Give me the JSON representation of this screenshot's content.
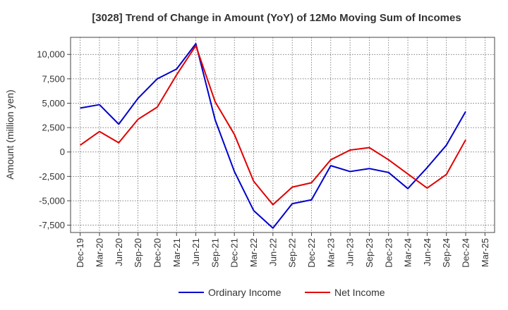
{
  "chart_data": {
    "type": "line",
    "title": "[3028]  Trend of Change in Amount (YoY) of 12Mo Moving Sum of Incomes",
    "xlabel": "",
    "ylabel": "Amount (million yen)",
    "ylim": [
      -8250,
      11750
    ],
    "yticks": [
      -7500,
      -5000,
      -2500,
      0,
      2500,
      5000,
      7500,
      10000
    ],
    "ytick_labels": [
      "-7,500",
      "-5,000",
      "-2,500",
      "0",
      "2,500",
      "5,000",
      "7,500",
      "10,000"
    ],
    "categories": [
      "Dec-19",
      "Mar-20",
      "Jun-20",
      "Sep-20",
      "Dec-20",
      "Mar-21",
      "Jun-21",
      "Sep-21",
      "Dec-21",
      "Mar-22",
      "Jun-22",
      "Sep-22",
      "Dec-22",
      "Mar-23",
      "Jun-23",
      "Sep-23",
      "Dec-23",
      "Mar-24",
      "Jun-24",
      "Sep-24",
      "Dec-24",
      "Mar-25"
    ],
    "grid": true,
    "legend_position": "bottom",
    "series": [
      {
        "name": "Ordinary Income",
        "color": "#0000cc",
        "values": [
          4500,
          4850,
          2850,
          5500,
          7500,
          8500,
          11100,
          3300,
          -2000,
          -6000,
          -7800,
          -5300,
          -4900,
          -1400,
          -2000,
          -1700,
          -2100,
          -3750,
          -1600,
          700,
          4150,
          null
        ]
      },
      {
        "name": "Net Income",
        "color": "#e00000",
        "values": [
          700,
          2100,
          950,
          3350,
          4600,
          7900,
          10900,
          5150,
          1800,
          -3000,
          -5400,
          -3600,
          -3150,
          -800,
          200,
          450,
          -800,
          -2250,
          -3700,
          -2300,
          1250,
          null
        ]
      }
    ]
  }
}
